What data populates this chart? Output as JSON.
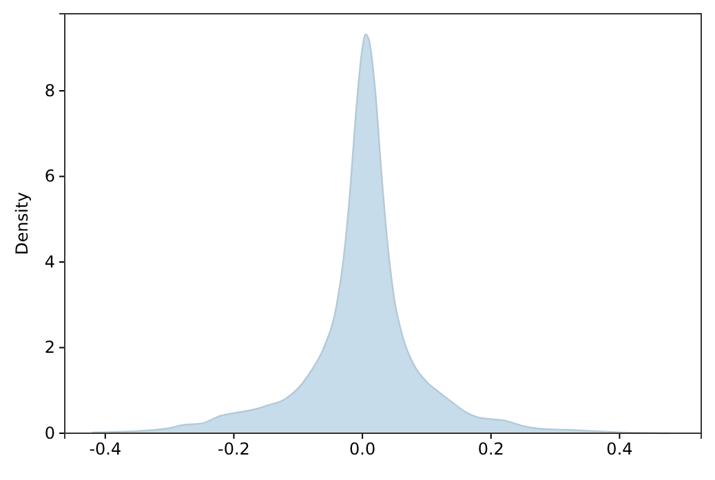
{
  "chart_data": {
    "type": "area",
    "ylabel": "Density",
    "xlim": [
      -0.463,
      0.527
    ],
    "ylim": [
      0,
      9.8
    ],
    "xticks": [
      {
        "value": -0.4,
        "label": "-0.4"
      },
      {
        "value": -0.2,
        "label": "-0.2"
      },
      {
        "value": 0,
        "label": "0.0"
      },
      {
        "value": 0.2,
        "label": "0.2"
      },
      {
        "value": 0.4,
        "label": "0.4"
      }
    ],
    "yticks": [
      0,
      2,
      4,
      6,
      8
    ],
    "grid": false,
    "series": [
      {
        "color": "#c6dcea",
        "x": [
          -0.42,
          -0.35,
          -0.3,
          -0.28,
          -0.25,
          -0.22,
          -0.2,
          -0.17,
          -0.15,
          -0.12,
          -0.1,
          -0.08,
          -0.06,
          -0.04,
          -0.03,
          -0.02,
          -0.01,
          0,
          0.005,
          0.01,
          0.02,
          0.03,
          0.04,
          0.05,
          0.06,
          0.08,
          0.1,
          0.12,
          0.14,
          0.16,
          0.18,
          0.2,
          0.22,
          0.25,
          0.28,
          0.32,
          0.36,
          0.4,
          0.48
        ],
        "values": [
          0.02,
          0.05,
          0.12,
          0.19,
          0.23,
          0.41,
          0.47,
          0.55,
          0.64,
          0.8,
          1.05,
          1.45,
          2.0,
          3.0,
          4.0,
          5.5,
          7.5,
          9.0,
          9.32,
          9.2,
          8.0,
          6.0,
          4.3,
          3.1,
          2.4,
          1.6,
          1.2,
          0.95,
          0.72,
          0.5,
          0.37,
          0.33,
          0.3,
          0.17,
          0.1,
          0.08,
          0.05,
          0.02,
          0.0
        ]
      }
    ]
  }
}
